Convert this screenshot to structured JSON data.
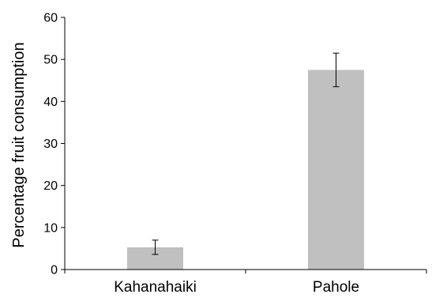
{
  "chart_data": {
    "type": "bar",
    "categories": [
      "Kahanahaiki",
      "Pahole"
    ],
    "values": [
      5.3,
      47.5
    ],
    "error": [
      1.7,
      4.0
    ],
    "ylabel": "Percentage fruit consumption",
    "xlabel": "",
    "ylim": [
      0,
      60
    ],
    "yticks": [
      0,
      10,
      20,
      30,
      40,
      50,
      60
    ],
    "grid": false,
    "bar_color": "#c0c0c0"
  }
}
